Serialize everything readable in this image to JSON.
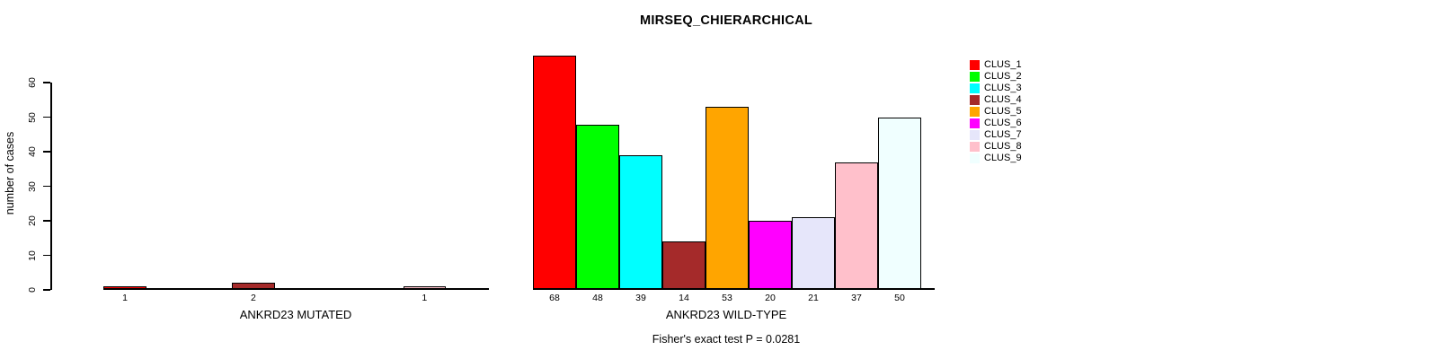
{
  "figure": {
    "title": "MIRSEQ_CHIERARCHICAL",
    "footnote": "Fisher's exact test P = 0.0281"
  },
  "y_axis": {
    "label": "number of cases",
    "ticks": [
      0,
      10,
      20,
      30,
      40,
      50,
      60
    ]
  },
  "legend": {
    "entries": [
      {
        "label": "CLUS_1",
        "color": "#FF0000"
      },
      {
        "label": "CLUS_2",
        "color": "#00FF00"
      },
      {
        "label": "CLUS_3",
        "color": "#00FFFF"
      },
      {
        "label": "CLUS_4",
        "color": "#A52A2A"
      },
      {
        "label": "CLUS_5",
        "color": "#FFA500"
      },
      {
        "label": "CLUS_6",
        "color": "#FF00FF"
      },
      {
        "label": "CLUS_7",
        "color": "#E6E6FA"
      },
      {
        "label": "CLUS_8",
        "color": "#FFC0CB"
      },
      {
        "label": "CLUS_9",
        "color": "#F0FFFF"
      }
    ]
  },
  "chart_data": [
    {
      "type": "bar",
      "panel": "mutated",
      "title": "MIRSEQ_CHIERARCHICAL",
      "xlabel": "ANKRD23 MUTATED",
      "ylabel": "number of cases",
      "ylim": [
        0,
        60
      ],
      "grid": false,
      "categories": [
        "CLUS_1",
        "CLUS_2",
        "CLUS_3",
        "CLUS_4",
        "CLUS_5",
        "CLUS_6",
        "CLUS_7",
        "CLUS_8",
        "CLUS_9"
      ],
      "values": [
        1,
        0,
        0,
        2,
        0,
        0,
        0,
        1,
        0
      ],
      "bar_labels": [
        "1",
        "",
        "",
        "2",
        "",
        "",
        "",
        "1",
        ""
      ]
    },
    {
      "type": "bar",
      "panel": "wild-type",
      "title": "MIRSEQ_CHIERARCHICAL",
      "xlabel": "ANKRD23 WILD-TYPE",
      "ylabel": "number of cases",
      "ylim": [
        0,
        60
      ],
      "grid": false,
      "annotation": "Fisher's exact test P = 0.0281",
      "categories": [
        "CLUS_1",
        "CLUS_2",
        "CLUS_3",
        "CLUS_4",
        "CLUS_5",
        "CLUS_6",
        "CLUS_7",
        "CLUS_8",
        "CLUS_9"
      ],
      "values": [
        68,
        48,
        39,
        14,
        53,
        20,
        21,
        37,
        50
      ],
      "bar_labels": [
        "68",
        "48",
        "39",
        "14",
        "53",
        "20",
        "21",
        "37",
        "50"
      ]
    }
  ]
}
